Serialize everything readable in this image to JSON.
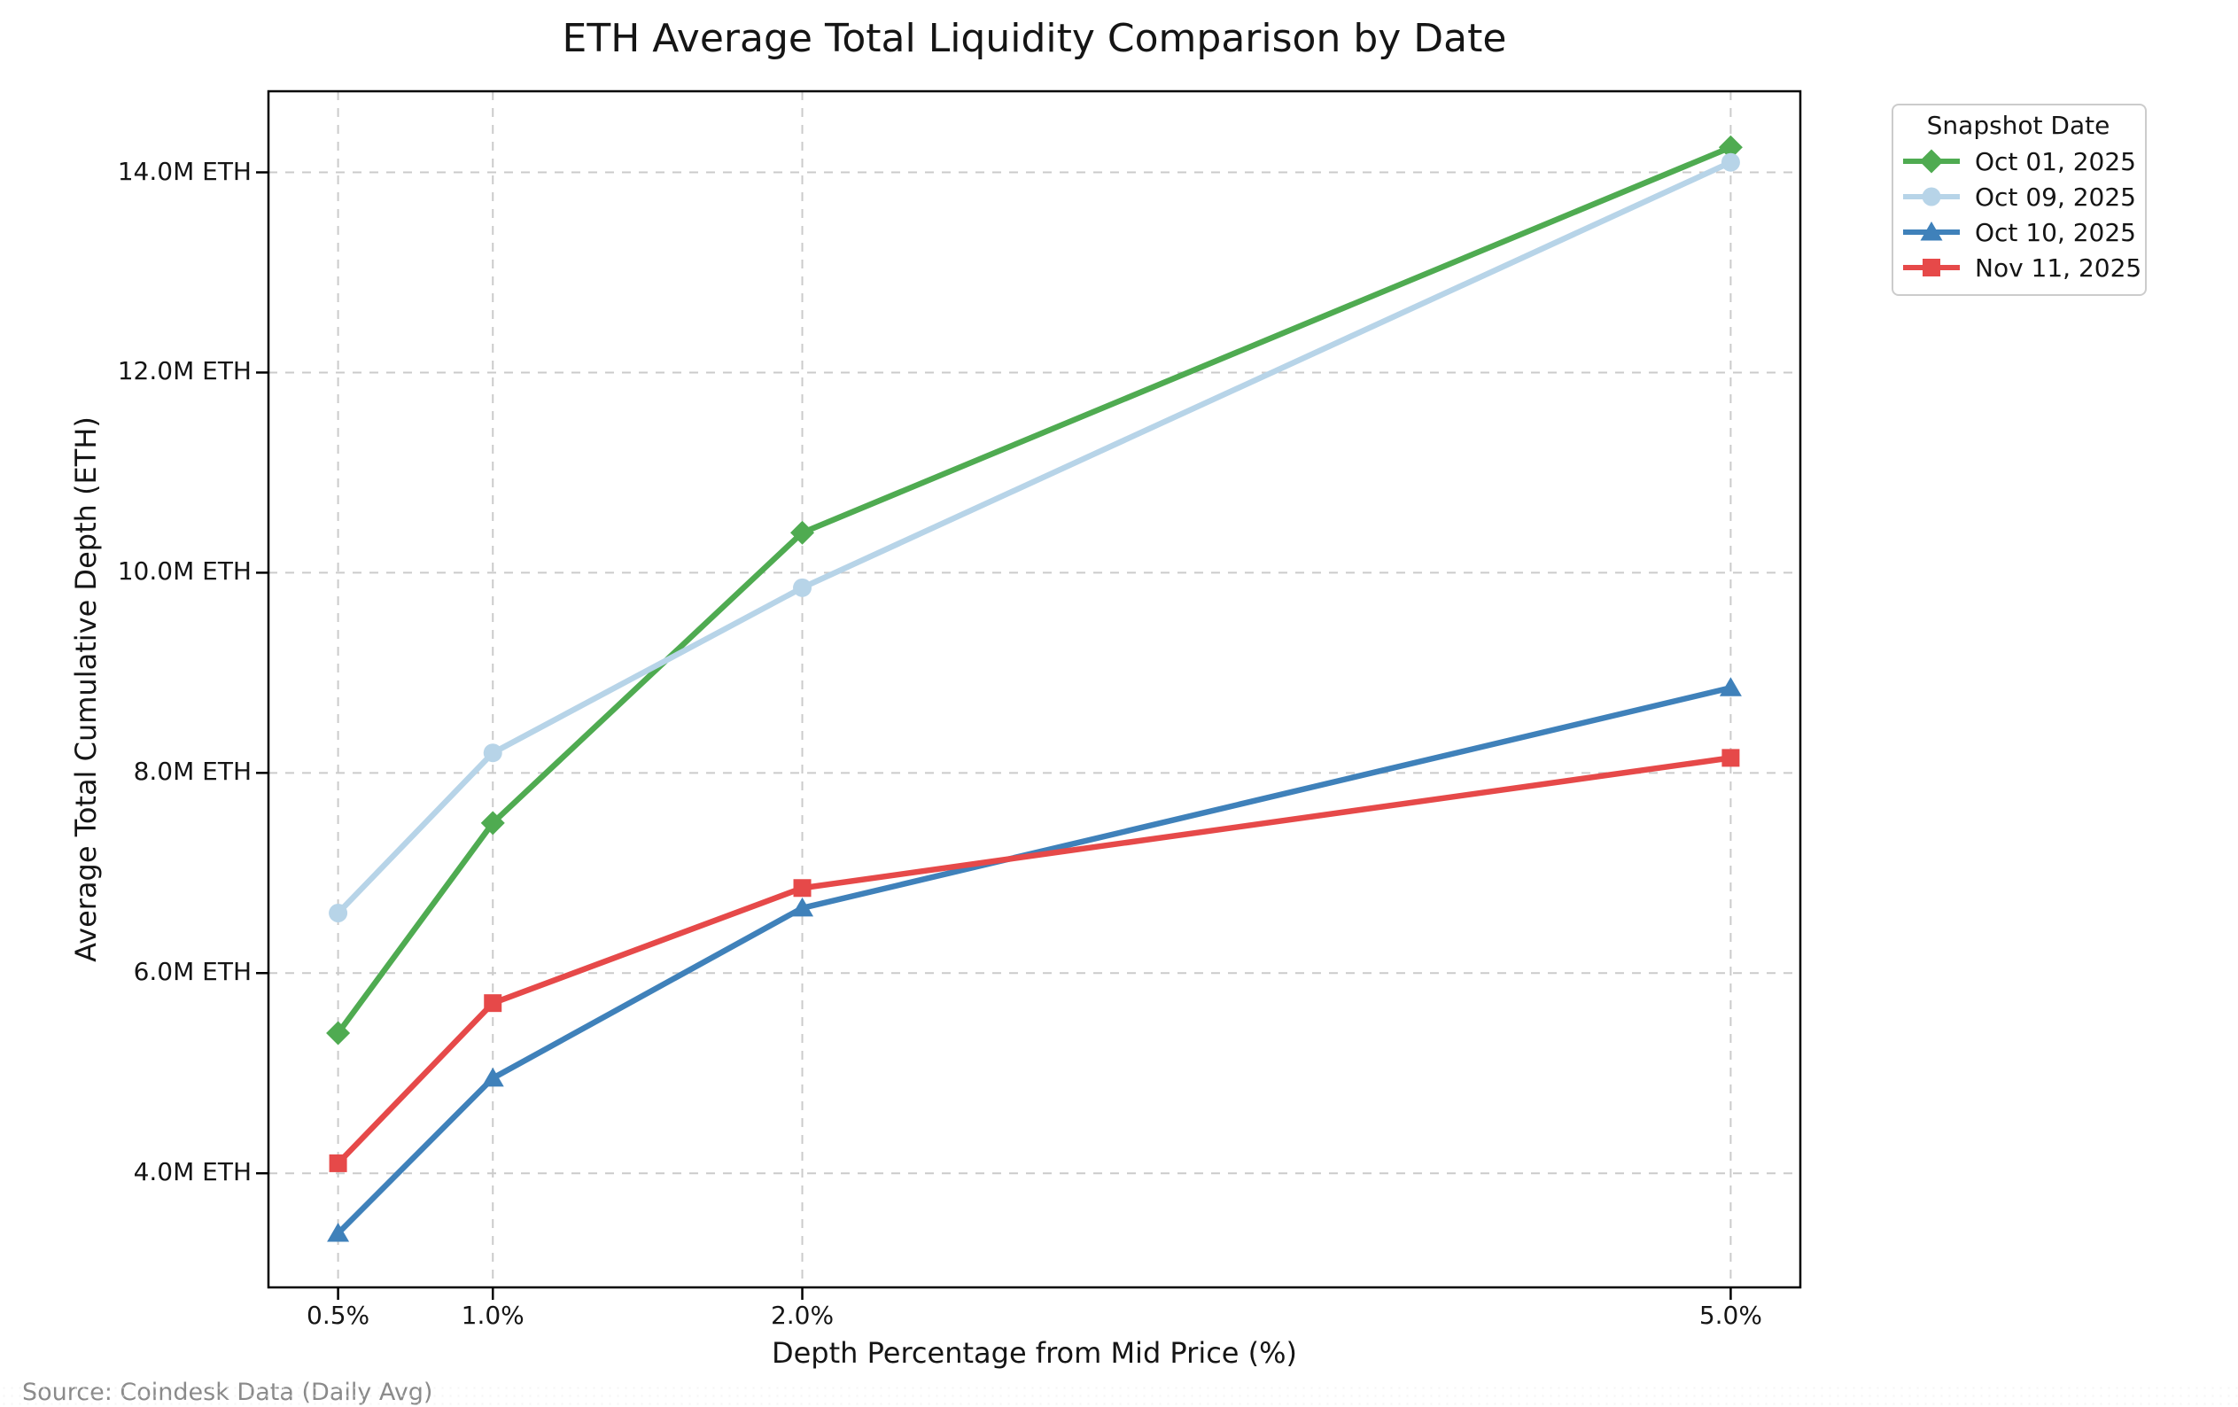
{
  "title": "ETH Average Total Liquidity Comparison by Date",
  "source_note": "Source: Coindesk Data (Daily Avg)",
  "chart_data": {
    "type": "line",
    "title": "ETH Average Total Liquidity Comparison by Date",
    "xlabel": "Depth Percentage from Mid Price (%)",
    "ylabel": "Average Total Cumulative Depth (ETH)",
    "y_unit": "M ETH",
    "x": [
      0.5,
      1.0,
      2.0,
      5.0
    ],
    "x_tick_labels": [
      "0.5%",
      "1.0%",
      "2.0%",
      "5.0%"
    ],
    "y_ticks": [
      4.0,
      6.0,
      8.0,
      10.0,
      12.0,
      14.0
    ],
    "y_tick_labels": [
      "4.0M ETH",
      "6.0M ETH",
      "8.0M ETH",
      "10.0M ETH",
      "12.0M ETH",
      "14.0M ETH"
    ],
    "xlim": [
      0.275,
      5.225
    ],
    "ylim": [
      2.86,
      14.81
    ],
    "grid": true,
    "grid_style": "dashed",
    "legend_title": "Snapshot Date",
    "legend_position": "outside-upper-right",
    "colors": {
      "grid": "#cbcbcb",
      "spine": "#000000",
      "source_text": "#8a8a8a"
    },
    "series": [
      {
        "name": "Oct 01, 2025",
        "color": "#4fab51",
        "marker": "diamond",
        "values": [
          5.4,
          7.5,
          10.4,
          14.25
        ]
      },
      {
        "name": "Oct 09, 2025",
        "color": "#b7d4e8",
        "marker": "circle",
        "values": [
          6.6,
          8.2,
          9.85,
          14.1
        ]
      },
      {
        "name": "Oct 10, 2025",
        "color": "#3f81ba",
        "marker": "triangle",
        "values": [
          3.4,
          4.95,
          6.65,
          8.85
        ]
      },
      {
        "name": "Nov 11, 2025",
        "color": "#e64949",
        "marker": "square",
        "values": [
          4.1,
          5.7,
          6.85,
          8.15
        ]
      }
    ]
  }
}
